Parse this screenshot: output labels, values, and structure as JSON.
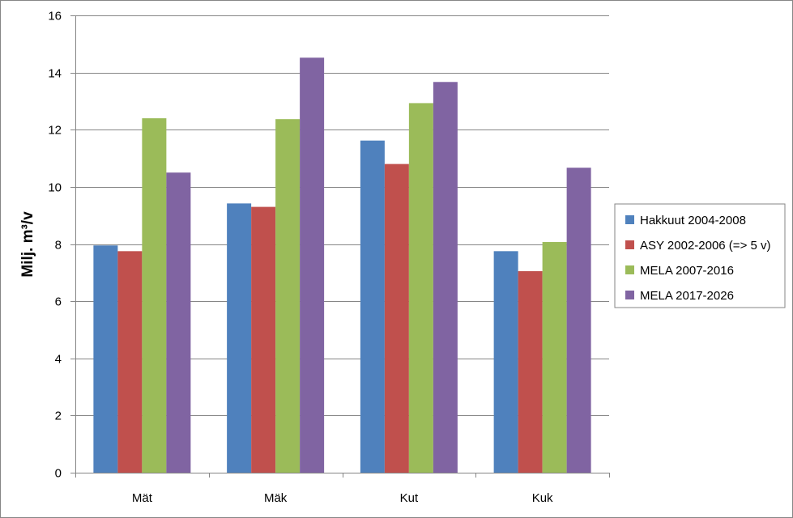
{
  "chart_data": {
    "type": "bar",
    "title": "",
    "xlabel": "",
    "ylabel": "Milj. m³/v",
    "ylim": [
      0,
      16
    ],
    "yticks": [
      0,
      2,
      4,
      6,
      8,
      10,
      12,
      14,
      16
    ],
    "ytick_labels": [
      "0",
      "2",
      "4",
      "6",
      "8",
      "10",
      "12",
      "14",
      "16"
    ],
    "grid": "horizontal",
    "legend_position": "right",
    "categories": [
      "Mät",
      "Mäk",
      "Kut",
      "Kuk"
    ],
    "series": [
      {
        "name": "Hakkuut 2004-2008",
        "color": "#4f81bd",
        "values": [
          7.95,
          9.42,
          11.62,
          7.75
        ]
      },
      {
        "name": "ASY 2002-2006 (=> 5 v)",
        "color": "#c0504d",
        "values": [
          7.75,
          9.3,
          10.8,
          7.05
        ]
      },
      {
        "name": "MELA 2007-2016",
        "color": "#9bbb59",
        "values": [
          12.4,
          12.37,
          12.93,
          8.07
        ]
      },
      {
        "name": "MELA 2017-2026",
        "color": "#8064a2",
        "values": [
          10.5,
          14.52,
          13.67,
          10.67
        ]
      }
    ]
  }
}
